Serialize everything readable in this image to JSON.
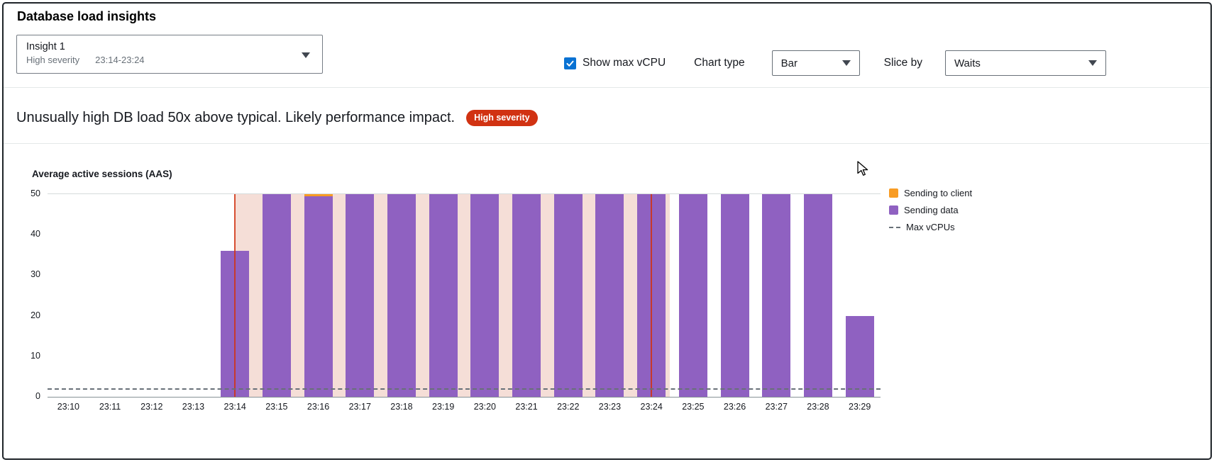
{
  "page": {
    "title": "Database load insights"
  },
  "insight_select": {
    "name": "Insight 1",
    "severity": "High severity",
    "time_range": "23:14-23:24"
  },
  "controls": {
    "show_max_vcpu_label": "Show max vCPU",
    "show_max_vcpu_checked": true,
    "chart_type_label": "Chart type",
    "chart_type_value": "Bar",
    "slice_by_label": "Slice by",
    "slice_by_value": "Waits"
  },
  "insight_message": {
    "text": "Unusually high DB load 50x above typical. Likely performance impact.",
    "badge": "High severity",
    "badge_color": "#d13212"
  },
  "chart_data": {
    "type": "bar",
    "stacked": true,
    "title": "Average active sessions (AAS)",
    "ylabel": "Average active sessions (AAS)",
    "categories": [
      "23:10",
      "23:11",
      "23:12",
      "23:13",
      "23:14",
      "23:15",
      "23:16",
      "23:17",
      "23:18",
      "23:19",
      "23:20",
      "23:21",
      "23:22",
      "23:23",
      "23:24",
      "23:25",
      "23:26",
      "23:27",
      "23:28",
      "23:29"
    ],
    "series": [
      {
        "name": "Sending to client",
        "color": "#f89c24",
        "values": [
          0,
          0,
          0,
          0,
          0,
          0,
          0.5,
          0,
          0,
          0,
          0,
          0,
          0,
          0,
          0,
          0,
          0,
          0,
          0,
          0
        ]
      },
      {
        "name": "Sending data",
        "color": "#8f61c1",
        "values": [
          0,
          0,
          0,
          0,
          36,
          50,
          49.5,
          50,
          50,
          50,
          50,
          50,
          50,
          50,
          50,
          50,
          50,
          50,
          50,
          20
        ]
      }
    ],
    "max_vcpus": {
      "label": "Max vCPUs",
      "value": 2,
      "color": "#687078"
    },
    "ylim": [
      0,
      50
    ],
    "yticks": [
      0,
      10,
      20,
      30,
      40,
      50
    ],
    "grid": false,
    "legend": [
      "Sending to client",
      "Sending data",
      "Max vCPUs"
    ],
    "legend_position": "right",
    "highlight_region": {
      "start": "23:14",
      "end": "23:24",
      "fill": "#f5ded7",
      "line_color": "#d13212"
    }
  }
}
